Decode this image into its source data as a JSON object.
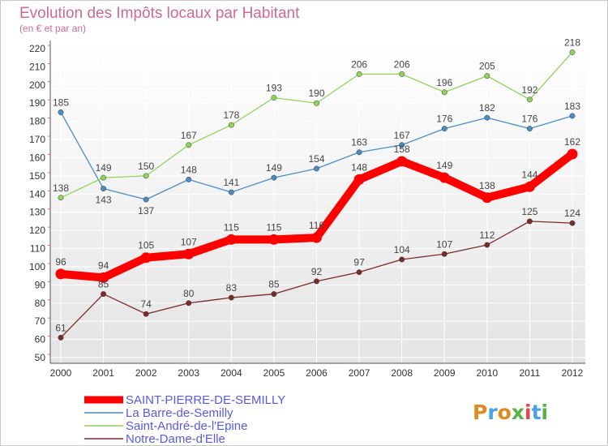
{
  "header": {
    "title": "Evolution des Impôts locaux par Habitant",
    "subtitle": "(en € et par an)"
  },
  "colors": {
    "plot_bg_top": "#ffffff",
    "plot_bg_bottom": "#e4e4e4",
    "grid": "#ffffff",
    "axis": "#555555",
    "tick_mark": "#e06080",
    "legend_text": "#5a5ae0",
    "logo_letters": [
      "#e08a20",
      "#4aa0e0",
      "#e08a20",
      "#5cb04a",
      "#e04a4a",
      "#4aa0e0",
      "#5cb04a"
    ]
  },
  "brand": {
    "logo_text": "Proxiti"
  },
  "chart_data": {
    "type": "line",
    "x": [
      "2000",
      "2001",
      "2002",
      "2003",
      "2004",
      "2005",
      "2006",
      "2007",
      "2008",
      "2009",
      "2010",
      "2011",
      "2012"
    ],
    "ylim": [
      50,
      220
    ],
    "ytick_step": 10,
    "xlabel": "",
    "ylabel": "",
    "grid": true,
    "legend_position": "bottom-left",
    "series": [
      {
        "name": "SAINT-PIERRE-DE-SEMILLY",
        "color": "#ff0000",
        "emphasis": "thick",
        "values": [
          96,
          94,
          105,
          107,
          115,
          115,
          116,
          148,
          158,
          149,
          138,
          144,
          162
        ]
      },
      {
        "name": "La Barre-de-Semilly",
        "color": "#4a8cc6",
        "emphasis": "normal",
        "values": [
          185,
          143,
          137,
          148,
          141,
          149,
          154,
          163,
          167,
          176,
          182,
          176,
          183
        ]
      },
      {
        "name": "Saint-André-de-l'Epine",
        "color": "#8fd45a",
        "emphasis": "normal",
        "values": [
          138,
          149,
          150,
          167,
          178,
          193,
          190,
          206,
          206,
          196,
          205,
          192,
          218
        ]
      },
      {
        "name": "Notre-Dame-d'Elle",
        "color": "#7a2a2a",
        "emphasis": "normal",
        "values": [
          61,
          85,
          74,
          80,
          83,
          85,
          92,
          97,
          104,
          107,
          112,
          125,
          124
        ]
      }
    ]
  }
}
